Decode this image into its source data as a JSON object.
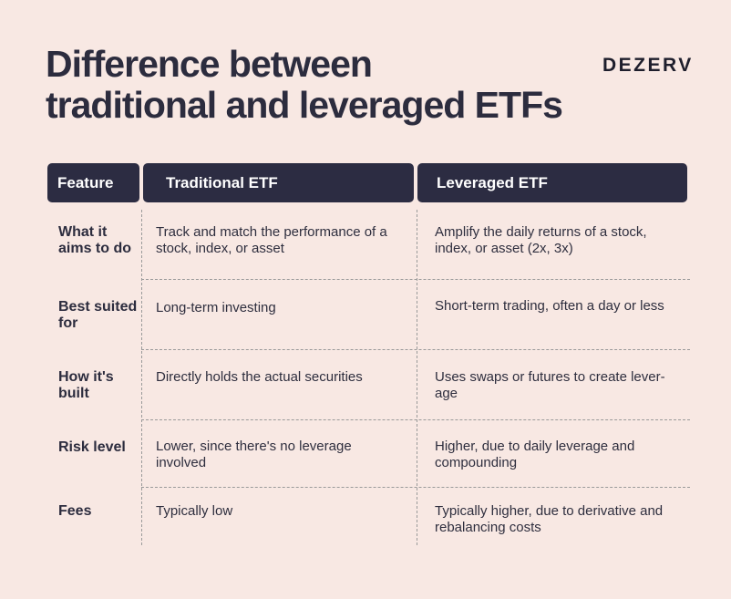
{
  "title_line1": "Difference between",
  "title_line2": "traditional and leveraged ETFs",
  "brand": "DEZERV",
  "headers": [
    "Feature",
    "Traditional ETF",
    "Leveraged ETF"
  ],
  "rows": [
    {
      "feature": "What it aims to do",
      "traditional": "Track and match the performance of a stock, index, or asset",
      "leveraged": "Amplify the daily returns of a stock, index, or asset (2x, 3x)"
    },
    {
      "feature": "Best suited for",
      "traditional": "Long-term investing",
      "leveraged": "Short-term trading, often a day or less"
    },
    {
      "feature": "How it's built",
      "traditional": "Directly holds the actual securities",
      "leveraged": "Uses swaps or futures to create lever-age"
    },
    {
      "feature": "Risk level",
      "traditional": "Lower, since there's no leverage involved",
      "leveraged": "Higher, due to daily leverage and compounding"
    },
    {
      "feature": "Fees",
      "traditional": "Typically low",
      "leveraged": "Typically higher, due to derivative and rebalancing costs"
    }
  ]
}
